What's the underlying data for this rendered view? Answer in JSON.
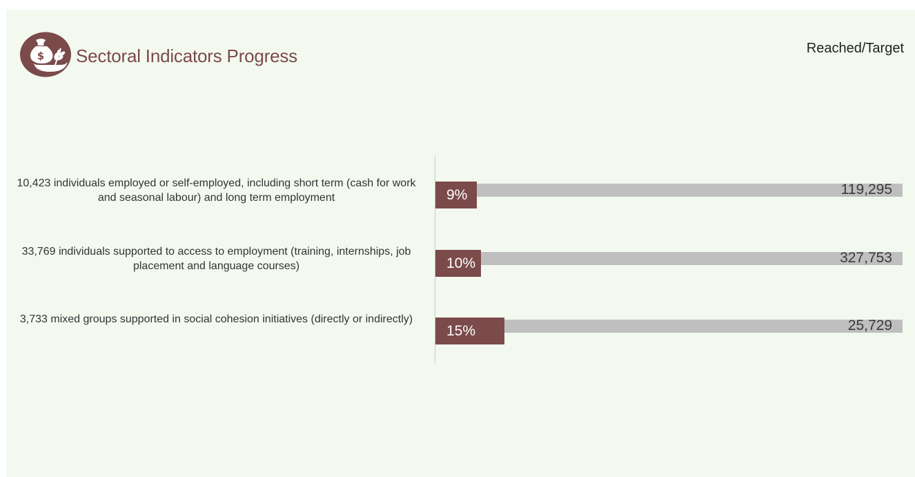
{
  "header": {
    "title": "Sectoral Indicators Progress",
    "legend_label": "Reached/Target",
    "logo_icon": "money-bag-wheat-icon",
    "accent_color": "#7b4a4a"
  },
  "chart_data": {
    "type": "bar",
    "orientation": "horizontal",
    "categories": [
      "10,423 individuals employed or self-employed, including short term (cash for work and seasonal labour) and long term employment",
      "33,769 individuals supported to access to employment (training, internships, job placement and language courses)",
      "3,733 mixed groups supported in social cohesion initiatives (directly or indirectly)"
    ],
    "series": [
      {
        "name": "Reached",
        "values": [
          10423,
          33769,
          3733
        ],
        "pct_labels": [
          "9%",
          "10%",
          "15%"
        ],
        "pct_values": [
          9,
          10,
          15
        ],
        "color": "#7b4a4a"
      },
      {
        "name": "Target",
        "values": [
          119295,
          327753,
          25729
        ],
        "value_labels": [
          "119,295",
          "327,753",
          "25,729"
        ],
        "color": "#bfbfbf"
      }
    ],
    "legend": "Reached/Target",
    "legend_position": "top-right",
    "xlim": [
      0,
      100
    ],
    "grid": false
  }
}
